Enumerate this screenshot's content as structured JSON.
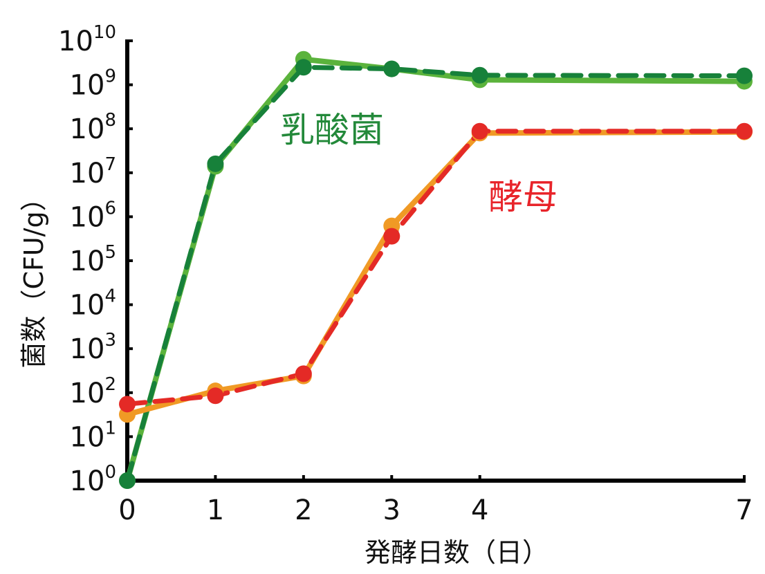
{
  "chart_data": {
    "type": "line",
    "xlabel": "発酵日数（日）",
    "ylabel": "菌数（CFU/g）",
    "x_ticks": [
      0,
      1,
      2,
      3,
      4,
      7
    ],
    "y_scale": "log",
    "y_ticks": [
      {
        "base": "10",
        "exp": "0"
      },
      {
        "base": "10",
        "exp": "1"
      },
      {
        "base": "10",
        "exp": "2"
      },
      {
        "base": "10",
        "exp": "3"
      },
      {
        "base": "10",
        "exp": "4"
      },
      {
        "base": "10",
        "exp": "5"
      },
      {
        "base": "10",
        "exp": "6"
      },
      {
        "base": "10",
        "exp": "7"
      },
      {
        "base": "10",
        "exp": "8"
      },
      {
        "base": "10",
        "exp": "9"
      },
      {
        "base": "10",
        "exp": "10"
      }
    ],
    "ylim": [
      1,
      10000000000
    ],
    "xlim": [
      0,
      7
    ],
    "grid": false,
    "legend": "none",
    "annotations": [
      {
        "text": "乳酸菌",
        "color": "#23893a"
      },
      {
        "text": "酵母",
        "color": "#e8242a"
      }
    ],
    "series": [
      {
        "group": "乳酸菌",
        "style": "solid",
        "color": "#5bb33c",
        "x": [
          0,
          1,
          2,
          3,
          4,
          7
        ],
        "y": [
          1,
          14000000,
          3800000000,
          2300000000,
          1300000000,
          1200000000
        ]
      },
      {
        "group": "乳酸菌",
        "style": "dashed",
        "color": "#17813a",
        "x": [
          0,
          1,
          2,
          3,
          4,
          7
        ],
        "y": [
          1,
          16000000,
          2500000000,
          2300000000,
          1650000000,
          1600000000
        ]
      },
      {
        "group": "酵母",
        "style": "solid",
        "color": "#f09a25",
        "x": [
          0,
          1,
          2,
          3,
          4,
          7
        ],
        "y": [
          32,
          110,
          240,
          620000,
          80000000,
          85000000
        ]
      },
      {
        "group": "酵母",
        "style": "dashed",
        "color": "#e42a26",
        "x": [
          0,
          1,
          2,
          3,
          4,
          7
        ],
        "y": [
          55,
          85,
          270,
          360000,
          88000000,
          88000000
        ]
      }
    ]
  }
}
